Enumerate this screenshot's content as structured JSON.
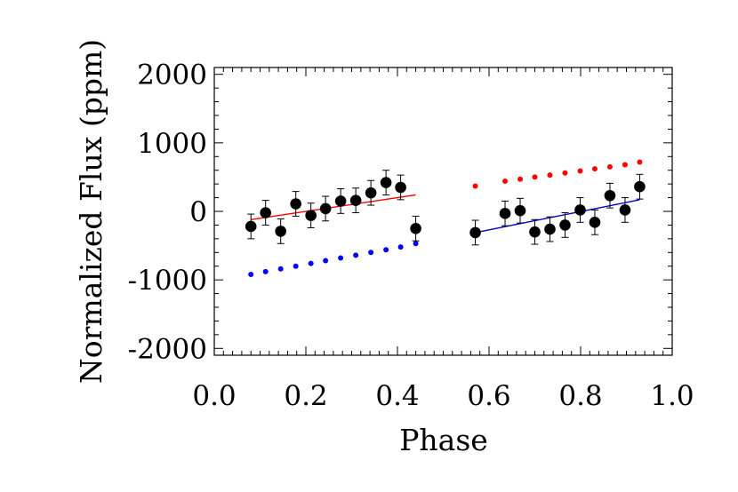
{
  "chart_data": {
    "type": "scatter",
    "title": "",
    "xlabel": "Phase",
    "ylabel": "Normalized Flux (ppm)",
    "xlim": [
      0.0,
      1.0
    ],
    "ylim": [
      -2100,
      2100
    ],
    "x_ticks": [
      "0.0",
      "0.2",
      "0.4",
      "0.6",
      "0.8",
      "1.0"
    ],
    "y_ticks": [
      "2000",
      "1000",
      "0",
      "-1000",
      "-2000"
    ],
    "grid": false,
    "legend": "none",
    "series": [
      {
        "kind": "points-with-errorbars",
        "color": "#000000",
        "points": [
          {
            "x": 0.08,
            "y": -220,
            "err": 180
          },
          {
            "x": 0.112,
            "y": -20,
            "err": 180
          },
          {
            "x": 0.145,
            "y": -290,
            "err": 180
          },
          {
            "x": 0.178,
            "y": 110,
            "err": 180
          },
          {
            "x": 0.211,
            "y": -60,
            "err": 180
          },
          {
            "x": 0.243,
            "y": 40,
            "err": 180
          },
          {
            "x": 0.276,
            "y": 150,
            "err": 180
          },
          {
            "x": 0.309,
            "y": 160,
            "err": 180
          },
          {
            "x": 0.342,
            "y": 270,
            "err": 180
          },
          {
            "x": 0.375,
            "y": 420,
            "err": 180
          },
          {
            "x": 0.407,
            "y": 350,
            "err": 180
          },
          {
            "x": 0.44,
            "y": -250,
            "err": 180
          },
          {
            "x": 0.57,
            "y": -310,
            "err": 180
          },
          {
            "x": 0.635,
            "y": -30,
            "err": 180
          },
          {
            "x": 0.668,
            "y": 10,
            "err": 180
          },
          {
            "x": 0.7,
            "y": -300,
            "err": 180
          },
          {
            "x": 0.733,
            "y": -260,
            "err": 180
          },
          {
            "x": 0.766,
            "y": -200,
            "err": 180
          },
          {
            "x": 0.799,
            "y": 20,
            "err": 180
          },
          {
            "x": 0.831,
            "y": -160,
            "err": 180
          },
          {
            "x": 0.864,
            "y": 230,
            "err": 180
          },
          {
            "x": 0.897,
            "y": 20,
            "err": 180
          },
          {
            "x": 0.929,
            "y": 360,
            "err": 180
          }
        ]
      },
      {
        "kind": "line",
        "color": "#ff0000",
        "points": [
          {
            "x": 0.08,
            "y": -120
          },
          {
            "x": 0.44,
            "y": 240
          }
        ]
      },
      {
        "kind": "line",
        "color": "#0000cc",
        "points": [
          {
            "x": 0.57,
            "y": -310
          },
          {
            "x": 0.929,
            "y": 170
          }
        ]
      },
      {
        "kind": "dotted",
        "color": "#0000ff",
        "points": [
          {
            "x": 0.08,
            "y": -920
          },
          {
            "x": 0.112,
            "y": -880
          },
          {
            "x": 0.145,
            "y": -840
          },
          {
            "x": 0.178,
            "y": -800
          },
          {
            "x": 0.211,
            "y": -760
          },
          {
            "x": 0.243,
            "y": -720
          },
          {
            "x": 0.276,
            "y": -680
          },
          {
            "x": 0.309,
            "y": -640
          },
          {
            "x": 0.342,
            "y": -600
          },
          {
            "x": 0.375,
            "y": -560
          },
          {
            "x": 0.407,
            "y": -520
          },
          {
            "x": 0.44,
            "y": -470
          }
        ]
      },
      {
        "kind": "dotted",
        "color": "#ff0000",
        "points": [
          {
            "x": 0.57,
            "y": 370
          },
          {
            "x": 0.635,
            "y": 440
          },
          {
            "x": 0.668,
            "y": 470
          },
          {
            "x": 0.7,
            "y": 500
          },
          {
            "x": 0.733,
            "y": 530
          },
          {
            "x": 0.766,
            "y": 560
          },
          {
            "x": 0.799,
            "y": 590
          },
          {
            "x": 0.831,
            "y": 620
          },
          {
            "x": 0.864,
            "y": 650
          },
          {
            "x": 0.897,
            "y": 680
          },
          {
            "x": 0.929,
            "y": 720
          }
        ]
      }
    ]
  }
}
